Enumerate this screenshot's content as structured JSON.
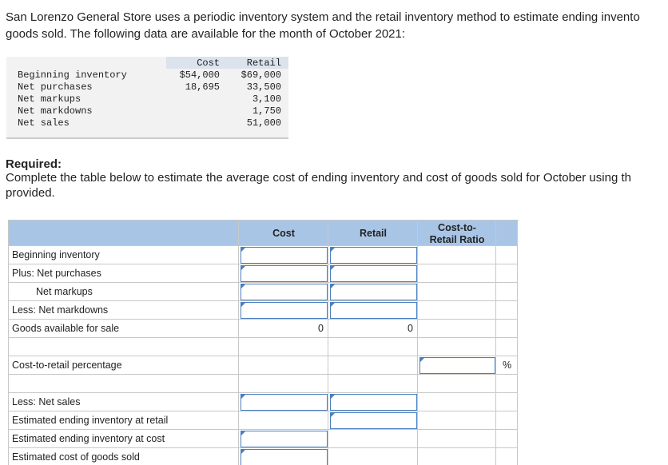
{
  "intro": {
    "lines": [
      "San Lorenzo General Store uses a periodic inventory system and the retail inventory method to estimate ending invento",
      "goods sold. The following data are available for the month of October 2021:"
    ]
  },
  "data_table": {
    "columns": [
      "Cost",
      "Retail"
    ],
    "rows": [
      {
        "label": "Beginning inventory",
        "cost": "$54,000",
        "retail": "$69,000"
      },
      {
        "label": "Net purchases",
        "cost": "18,695",
        "retail": "33,500"
      },
      {
        "label": "Net markups",
        "retail": "3,100"
      },
      {
        "label": "Net markdowns",
        "retail": "1,750"
      },
      {
        "label": "Net sales",
        "retail": "51,000"
      }
    ]
  },
  "required": {
    "heading": "Required:",
    "lines": [
      "Complete the table below to estimate the average cost of ending inventory and cost of goods sold for October using th",
      "provided."
    ]
  },
  "table": {
    "columns": [
      "Cost",
      "Retail",
      "Cost-to-Retail Ratio"
    ],
    "rows": [
      {
        "label": "Beginning inventory"
      },
      {
        "label": "Plus: Net purchases"
      },
      {
        "label": "Net markups"
      },
      {
        "label": "Less: Net markdowns"
      },
      {
        "label": "Goods available for sale",
        "cost": "0",
        "retail": "0"
      },
      {
        "label": "Cost-to-retail percentage",
        "unit": "%"
      },
      {
        "label": "Less: Net sales"
      },
      {
        "label": "Estimated ending inventory at retail"
      },
      {
        "label": "Estimated ending inventory at cost"
      },
      {
        "label": "Estimated cost of goods sold"
      }
    ]
  }
}
